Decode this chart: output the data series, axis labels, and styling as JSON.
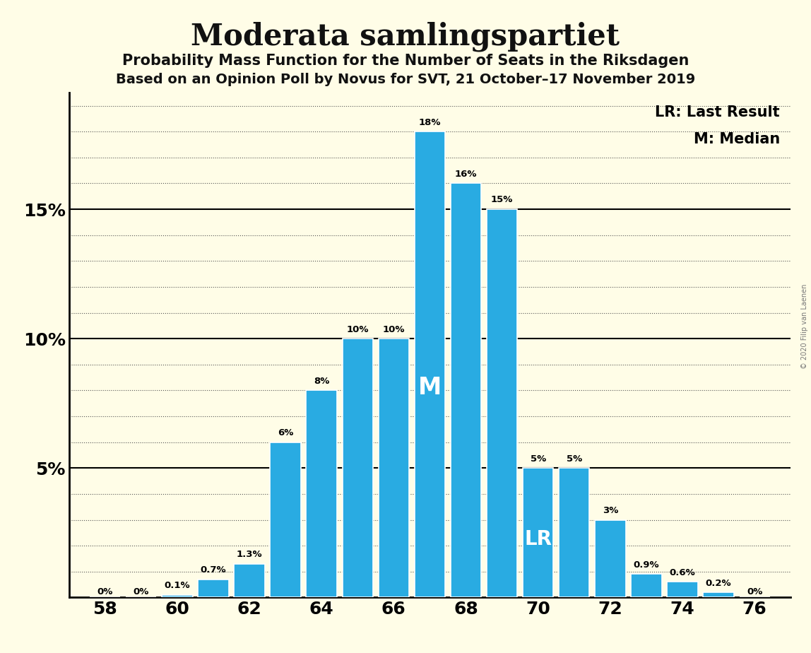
{
  "title": "Moderata samlingspartiet",
  "subtitle1": "Probability Mass Function for the Number of Seats in the Riksdagen",
  "subtitle2": "Based on an Opinion Poll by Novus for SVT, 21 October–17 November 2019",
  "copyright": "© 2020 Filip van Laenen",
  "seats": [
    58,
    59,
    60,
    61,
    62,
    63,
    64,
    65,
    66,
    67,
    68,
    69,
    70,
    71,
    72,
    73,
    74,
    75,
    76
  ],
  "probabilities": [
    0.0,
    0.0,
    0.1,
    0.7,
    1.3,
    6.0,
    8.0,
    10.0,
    10.0,
    18.0,
    16.0,
    15.0,
    5.0,
    5.0,
    3.0,
    0.9,
    0.6,
    0.2,
    0.0
  ],
  "labels": [
    "0%",
    "0%",
    "0.1%",
    "0.7%",
    "1.3%",
    "6%",
    "8%",
    "10%",
    "10%",
    "18%",
    "16%",
    "15%",
    "5%",
    "5%",
    "3%",
    "0.9%",
    "0.6%",
    "0.2%",
    "0%"
  ],
  "bar_color": "#29ABE2",
  "background_color": "#FFFDE7",
  "median_seat": 67,
  "lr_seat": 70,
  "major_yticks": [
    5,
    10,
    15
  ],
  "minor_yticks_values": [
    1,
    2,
    3,
    4,
    6,
    7,
    8,
    9,
    11,
    12,
    13,
    14,
    16,
    17,
    18,
    19
  ],
  "ylim": [
    0,
    19.5
  ],
  "x_min": 57.0,
  "x_max": 77.0,
  "bar_width": 0.85
}
